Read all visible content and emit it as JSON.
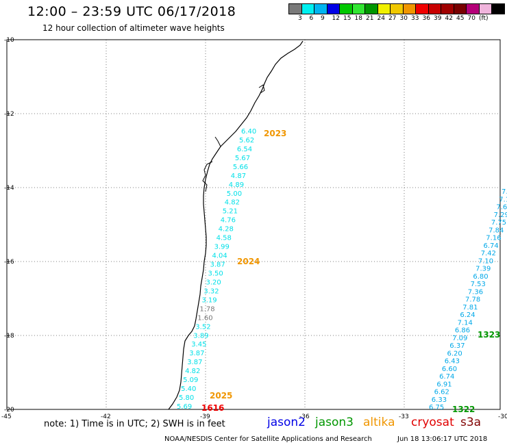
{
  "header": {
    "title": "12:00 – 23:59 UTC 06/17/2018",
    "subtitle": "12 hour collection of altimeter wave heights"
  },
  "color_scale": {
    "unit": "(ft)",
    "colors": [
      "#7a7a7a",
      "#00f0f0",
      "#00b4f0",
      "#0000e6",
      "#00c800",
      "#32e632",
      "#009600",
      "#f0f000",
      "#f0c800",
      "#f09600",
      "#f00000",
      "#c80000",
      "#a00000",
      "#780000",
      "#b40078",
      "#f0b4dc",
      "#000000"
    ],
    "labels": [
      "3",
      "6",
      "9",
      "12",
      "15",
      "18",
      "21",
      "24",
      "27",
      "30",
      "33",
      "36",
      "39",
      "42",
      "45",
      "70"
    ]
  },
  "axes": {
    "lat_labels": [
      "-10",
      "-12",
      "-14",
      "-16",
      "-18",
      "-20"
    ],
    "lon_labels": [
      "-45",
      "-42",
      "-39",
      "-36",
      "-33",
      "-30"
    ]
  },
  "passes": [
    {
      "label": "2023",
      "color": "#f09600"
    },
    {
      "label": "2024",
      "color": "#f09600"
    },
    {
      "label": "2025",
      "color": "#f09600"
    },
    {
      "label": "1616",
      "color": "#f00000"
    },
    {
      "label": "1323",
      "color": "#009600"
    },
    {
      "label": "1322",
      "color": "#009600"
    }
  ],
  "track_west": [
    {
      "v": "6.40",
      "c": "#00e0e8"
    },
    {
      "v": "5.62",
      "c": "#00e0e8"
    },
    {
      "v": "6.54",
      "c": "#00e0e8"
    },
    {
      "v": "5.67",
      "c": "#00e0e8"
    },
    {
      "v": "5.66",
      "c": "#00e0e8"
    },
    {
      "v": "4.87",
      "c": "#00e0e8"
    },
    {
      "v": "4.89",
      "c": "#00e0e8"
    },
    {
      "v": "5.00",
      "c": "#00e0e8"
    },
    {
      "v": "4.82",
      "c": "#00e0e8"
    },
    {
      "v": "5.21",
      "c": "#00e0e8"
    },
    {
      "v": "4.76",
      "c": "#00e0e8"
    },
    {
      "v": "4.28",
      "c": "#00e0e8"
    },
    {
      "v": "4.58",
      "c": "#00e0e8"
    },
    {
      "v": "3.99",
      "c": "#00e0e8"
    },
    {
      "v": "4.04",
      "c": "#00e0e8"
    },
    {
      "v": "3.87",
      "c": "#00e0e8"
    },
    {
      "v": "3.50",
      "c": "#00e0e8"
    },
    {
      "v": "3.20",
      "c": "#00e0e8"
    },
    {
      "v": "3.32",
      "c": "#00e0e8"
    },
    {
      "v": "3.19",
      "c": "#00e0e8"
    },
    {
      "v": "1.78",
      "c": "#777777"
    },
    {
      "v": "1.60",
      "c": "#777777"
    },
    {
      "v": "3.52",
      "c": "#00e0e8"
    },
    {
      "v": "3.89",
      "c": "#00e0e8"
    },
    {
      "v": "3.45",
      "c": "#00e0e8"
    },
    {
      "v": "3.87",
      "c": "#00e0e8"
    },
    {
      "v": "3.87",
      "c": "#00e0e8"
    },
    {
      "v": "4.82",
      "c": "#00e0e8"
    },
    {
      "v": "5.09",
      "c": "#00e0e8"
    },
    {
      "v": "5.40",
      "c": "#00e0e8"
    },
    {
      "v": "5.80",
      "c": "#00e0e8"
    },
    {
      "v": "5.69",
      "c": "#00e0e8"
    }
  ],
  "track_east": [
    {
      "v": "6.75"
    },
    {
      "v": "6.33"
    },
    {
      "v": "6.62"
    },
    {
      "v": "6.91"
    },
    {
      "v": "6.74"
    },
    {
      "v": "6.60"
    },
    {
      "v": "6.43"
    },
    {
      "v": "6.20"
    },
    {
      "v": "6.37"
    },
    {
      "v": "7.09"
    },
    {
      "v": "6.86"
    },
    {
      "v": "7.14"
    },
    {
      "v": "6.24"
    },
    {
      "v": "7.81"
    },
    {
      "v": "7.78"
    },
    {
      "v": "7.36"
    },
    {
      "v": "7.53"
    },
    {
      "v": "6.80"
    },
    {
      "v": "7.39"
    },
    {
      "v": "7.10"
    },
    {
      "v": "7.42"
    },
    {
      "v": "6.74"
    },
    {
      "v": "7.16"
    },
    {
      "v": "7.84"
    },
    {
      "v": "7.75"
    },
    {
      "v": "7.29"
    },
    {
      "v": "7.6"
    },
    {
      "v": "7.1"
    },
    {
      "v": "7."
    }
  ],
  "footer": {
    "note": "note: 1) Time is in UTC; 2) SWH is in feet",
    "satellites": [
      {
        "name": "jason2",
        "color": "#0000e6"
      },
      {
        "name": "jason3",
        "color": "#009600"
      },
      {
        "name": "altika",
        "color": "#f09600"
      },
      {
        "name": "cryosat",
        "color": "#e00000"
      },
      {
        "name": "s3a",
        "color": "#800000"
      }
    ],
    "credit": "NOAA/NESDIS Center for Satellite Applications and Research",
    "timestamp": "Jun 18 13:06:17 UTC 2018"
  }
}
